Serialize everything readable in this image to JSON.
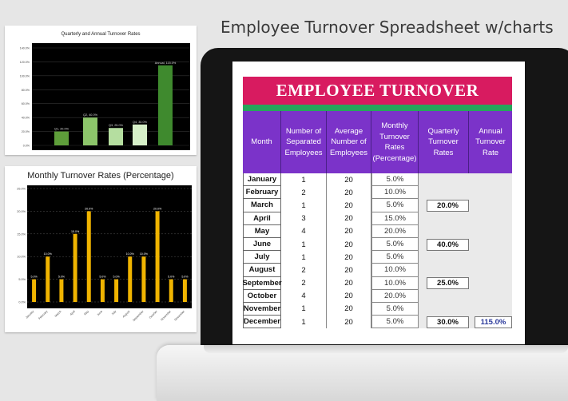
{
  "page": {
    "title": "Employee Turnover Spreadsheet w/charts"
  },
  "colors": {
    "banner": "#d81b60",
    "strip": "#26a65b",
    "header": "#7b33c9",
    "chart1_bars": "#5e9e3a",
    "chart2_bars": "#f0b400"
  },
  "chart_data": [
    {
      "type": "bar",
      "title": "Quarterly and Annual Turnover Rates",
      "categories": [
        "Q1",
        "Q2",
        "Q3",
        "Q4",
        "Annual"
      ],
      "values": [
        20.0,
        40.0,
        25.0,
        30.0,
        115.0
      ],
      "data_labels": [
        "Q1, 20.0%",
        "Q2, 40.0%",
        "Q3, 25.0%",
        "Q4, 30.0%",
        "Annual, 115.0%"
      ],
      "ylim": [
        0,
        140
      ],
      "yticks": [
        "0.0%",
        "20.0%",
        "40.0%",
        "60.0%",
        "80.0%",
        "100.0%",
        "120.0%",
        "140.0%"
      ],
      "bar_colors": [
        "#5e9e3a",
        "#8cc56a",
        "#b5dea0",
        "#d6efc8",
        "#3f8a2e"
      ],
      "grid": true
    },
    {
      "type": "bar",
      "title": "Monthly Turnover Rates (Percentage)",
      "categories": [
        "January",
        "February",
        "March",
        "April",
        "May",
        "June",
        "July",
        "August",
        "September",
        "October",
        "November",
        "December"
      ],
      "values": [
        5.0,
        10.0,
        5.0,
        15.0,
        20.0,
        5.0,
        5.0,
        10.0,
        10.0,
        20.0,
        5.0,
        5.0
      ],
      "data_labels": [
        "5.0%",
        "10.0%",
        "5.0%",
        "15.0%",
        "20.0%",
        "5.0%",
        "5.0%",
        "10.0%",
        "10.0%",
        "20.0%",
        "5.0%",
        "5.0%"
      ],
      "ylim": [
        0,
        25
      ],
      "yticks": [
        "0.0%",
        "5.0%",
        "10.0%",
        "15.0%",
        "20.0%",
        "25.0%"
      ],
      "grid": true
    }
  ],
  "sheet": {
    "banner": "EMPLOYEE TURNOVER",
    "headers": {
      "month": "Month",
      "separated": "Number of Separated Employees",
      "average": "Average Number of Employees",
      "monthly_rate": "Monthly Turnover Rates (Percentage)",
      "quarterly": "Quarterly Turnover Rates",
      "annual": "Annual Turnover Rate"
    },
    "rows": [
      {
        "month": "January",
        "separated": "1",
        "average": "20",
        "rate": "5.0%"
      },
      {
        "month": "February",
        "separated": "2",
        "average": "20",
        "rate": "10.0%"
      },
      {
        "month": "March",
        "separated": "1",
        "average": "20",
        "rate": "5.0%"
      },
      {
        "month": "April",
        "separated": "3",
        "average": "20",
        "rate": "15.0%"
      },
      {
        "month": "May",
        "separated": "4",
        "average": "20",
        "rate": "20.0%"
      },
      {
        "month": "June",
        "separated": "1",
        "average": "20",
        "rate": "5.0%"
      },
      {
        "month": "July",
        "separated": "1",
        "average": "20",
        "rate": "5.0%"
      },
      {
        "month": "August",
        "separated": "2",
        "average": "20",
        "rate": "10.0%"
      },
      {
        "month": "September",
        "separated": "2",
        "average": "20",
        "rate": "10.0%"
      },
      {
        "month": "October",
        "separated": "4",
        "average": "20",
        "rate": "20.0%"
      },
      {
        "month": "November",
        "separated": "1",
        "average": "20",
        "rate": "5.0%"
      },
      {
        "month": "December",
        "separated": "1",
        "average": "20",
        "rate": "5.0%"
      }
    ],
    "quarterly": [
      "20.0%",
      "40.0%",
      "25.0%",
      "30.0%"
    ],
    "annual": "115.0%"
  }
}
